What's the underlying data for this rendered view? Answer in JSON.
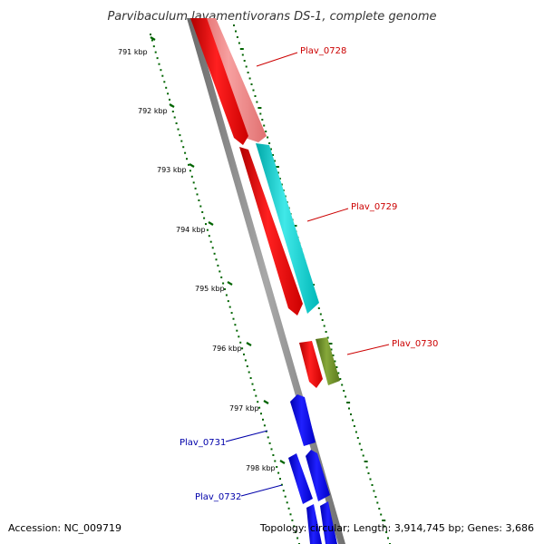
{
  "title": "Parvibaculum lavamentivorans DS-1, complete genome",
  "footer": {
    "accession": "Accession: NC_009719",
    "topology": "Topology: circular; Length: 3,914,745 bp; Genes: 3,686"
  },
  "colors": {
    "forward_cds": "#ff0000",
    "forward_cds_light": "#f08080",
    "reverse_cds": "#0000ff",
    "cyan_feature": "#00cccc",
    "olive_feature": "#6b8e23",
    "backbone": "#808080",
    "ticks": "#006400",
    "red_label": "#cc0000",
    "blue_label": "#0000aa"
  },
  "scale": {
    "ticks": [
      {
        "kbp": 791,
        "label": "791 kbp"
      },
      {
        "kbp": 792,
        "label": "792 kbp"
      },
      {
        "kbp": 793,
        "label": "793 kbp"
      },
      {
        "kbp": 794,
        "label": "794 kbp"
      },
      {
        "kbp": 795,
        "label": "795 kbp"
      },
      {
        "kbp": 796,
        "label": "796 kbp"
      },
      {
        "kbp": 797,
        "label": "797 kbp"
      },
      {
        "kbp": 798,
        "label": "798 kbp"
      }
    ]
  },
  "features": [
    {
      "name": "Plav_0728",
      "strand": "forward",
      "color": "#f08080",
      "label_color": "#cc0000"
    },
    {
      "name": "Plav_0729",
      "strand": "forward",
      "color": "#00cccc",
      "label_color": "#cc0000"
    },
    {
      "name": "Plav_0730",
      "strand": "forward",
      "color": "#6b8e23",
      "label_color": "#cc0000"
    },
    {
      "name": "Plav_0731",
      "strand": "reverse",
      "color": "#0000ff",
      "label_color": "#0000aa"
    },
    {
      "name": "Plav_0732",
      "strand": "reverse",
      "color": "#0000ff",
      "label_color": "#0000aa"
    }
  ]
}
